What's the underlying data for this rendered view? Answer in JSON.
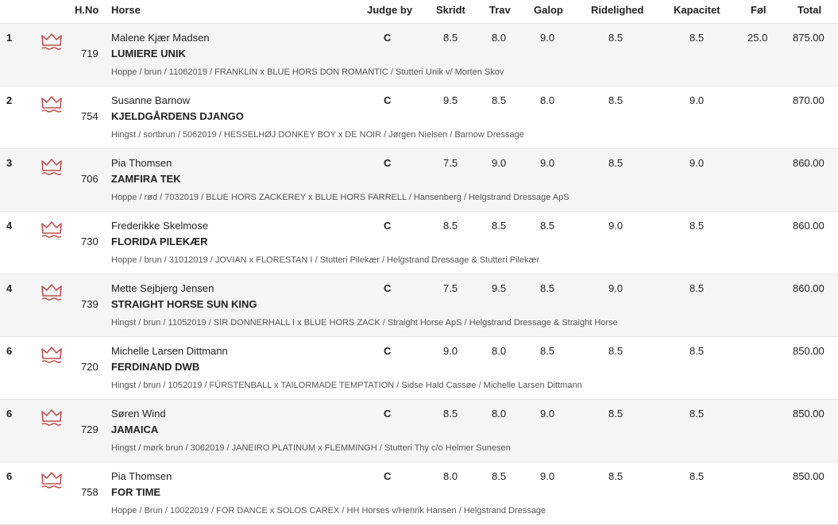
{
  "header": {
    "hno": "H.No",
    "horse": "Horse",
    "judge": "Judge by",
    "skridt": "Skridt",
    "trav": "Trav",
    "galop": "Galop",
    "ridelighed": "Ridelighed",
    "kapacitet": "Kapacitet",
    "fol": "Føl",
    "total": "Total"
  },
  "icons": {
    "crown": "crown-icon",
    "crown_color": "#c0504d"
  },
  "rows": [
    {
      "rank": "1",
      "hno": "719",
      "rider": "Malene Kjær Madsen",
      "horse": "LUMIERE UNIK",
      "info": "Hoppe / brun / 11062019 / FRANKLIN x BLUE HORS DON ROMANTIC / Stutteri Unik v/ Morten Skov",
      "judge": "C",
      "skridt": "8.5",
      "trav": "8.0",
      "galop": "9.0",
      "ridelighed": "8.5",
      "kapacitet": "8.5",
      "fol": "25.0",
      "total": "875.00"
    },
    {
      "rank": "2",
      "hno": "754",
      "rider": "Susanne Barnow",
      "horse": "KJELDGÅRDENS DJANGO",
      "info": "Hingst / sortbrun / 5062019 / HESSELHØJ DONKEY BOY x DE NOIR / Jørgen Nielsen / Barnow Dressage",
      "judge": "C",
      "skridt": "9.5",
      "trav": "8.5",
      "galop": "8.0",
      "ridelighed": "8.5",
      "kapacitet": "9.0",
      "fol": "",
      "total": "870.00"
    },
    {
      "rank": "3",
      "hno": "706",
      "rider": "Pia Thomsen",
      "horse": "ZAMFIRA TEK",
      "info": "Hoppe / rød / 7032019 / BLUE HORS ZACKEREY x BLUE HORS FARRELL / Hansenberg / Helgstrand Dressage ApS",
      "judge": "C",
      "skridt": "7.5",
      "trav": "9.0",
      "galop": "9.0",
      "ridelighed": "8.5",
      "kapacitet": "9.0",
      "fol": "",
      "total": "860.00"
    },
    {
      "rank": "4",
      "hno": "730",
      "rider": "Frederikke Skelmose",
      "horse": "FLORIDA PILEKÆR",
      "info": "Hoppe / brun / 31012019 / JOVIAN x FLORESTAN I / Stutteri Pilekær / Helgstrand Dressage & Stutteri Pilekær",
      "judge": "C",
      "skridt": "8.5",
      "trav": "8.5",
      "galop": "8.5",
      "ridelighed": "9.0",
      "kapacitet": "8.5",
      "fol": "",
      "total": "860.00"
    },
    {
      "rank": "4",
      "hno": "739",
      "rider": "Mette Sejbjerg Jensen",
      "horse": "STRAIGHT HORSE SUN KING",
      "info": "Hingst / brun / 11052019 / SIR DONNERHALL I x BLUE HORS ZACK / Straight Horse ApS / Helgstrand Dressage & Straight Horse",
      "judge": "C",
      "skridt": "7.5",
      "trav": "9.5",
      "galop": "8.5",
      "ridelighed": "9.0",
      "kapacitet": "8.5",
      "fol": "",
      "total": "860.00"
    },
    {
      "rank": "6",
      "hno": "720",
      "rider": "Michelle Larsen Dittmann",
      "horse": "FERDINAND DWB",
      "info": "Hingst / brun / 1052019 / FÜRSTENBALL x TAILORMADE TEMPTATION / Sidse Hald Cassøe / Michelle Larsen Dittmann",
      "judge": "C",
      "skridt": "9.0",
      "trav": "8.0",
      "galop": "8.5",
      "ridelighed": "8.5",
      "kapacitet": "8.5",
      "fol": "",
      "total": "850.00"
    },
    {
      "rank": "6",
      "hno": "729",
      "rider": "Søren Wind",
      "horse": "JAMAICA",
      "info": "Hingst / mørk brun / 3062019 / JANEIRO PLATINUM x FLEMMINGH / Stutteri Thy c/o Helmer Sunesen",
      "judge": "C",
      "skridt": "8.5",
      "trav": "8.0",
      "galop": "9.0",
      "ridelighed": "8.5",
      "kapacitet": "8.5",
      "fol": "",
      "total": "850.00"
    },
    {
      "rank": "6",
      "hno": "758",
      "rider": "Pia Thomsen",
      "horse": "FOR TIME",
      "info": "Hoppe / Brun / 10022019 / FOR DANCE x SOLOS CAREX / HH Horses v/Henrik Hansen / Helgstrand Dressage",
      "judge": "C",
      "skridt": "8.0",
      "trav": "8.5",
      "galop": "9.0",
      "ridelighed": "8.5",
      "kapacitet": "8.5",
      "fol": "",
      "total": "850.00"
    }
  ]
}
